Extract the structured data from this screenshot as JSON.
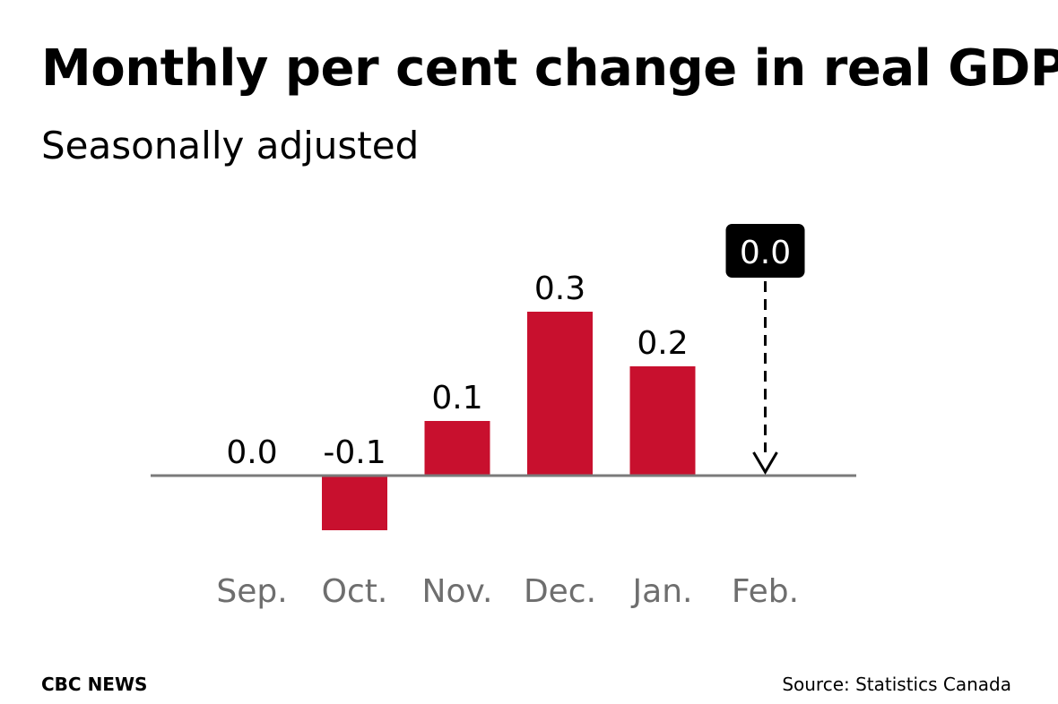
{
  "header": {
    "title": "Monthly per cent change in real GDP",
    "subtitle": "Seasonally adjusted"
  },
  "footer": {
    "credit": "CBC NEWS",
    "source": "Source: Statistics Canada"
  },
  "chart_data": {
    "type": "bar",
    "title": "Monthly per cent change in real GDP",
    "subtitle": "Seasonally adjusted",
    "categories": [
      "Sep.",
      "Oct.",
      "Nov.",
      "Dec.",
      "Jan.",
      "Feb."
    ],
    "values": [
      0.0,
      -0.1,
      0.1,
      0.3,
      0.2,
      0.0
    ],
    "value_labels": [
      "0.0",
      "-0.1",
      "0.1",
      "0.3",
      "0.2",
      "0.0"
    ],
    "highlight": {
      "category": "Feb.",
      "label": "0.0",
      "style": "dashed-arrow-callout"
    },
    "xlabel": "",
    "ylabel": "",
    "grid": false,
    "colors": {
      "bar": "#c8102e",
      "baseline": "#7a7a7a",
      "category_text": "#6e6e6e",
      "callout_bg": "#000000",
      "callout_text": "#ffffff"
    }
  }
}
